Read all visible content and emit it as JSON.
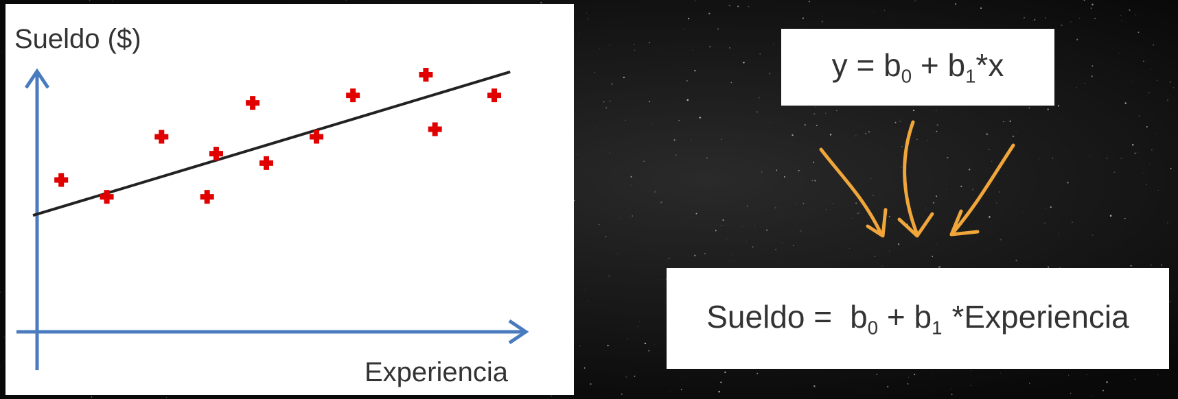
{
  "chart_data": {
    "type": "scatter",
    "ylabel": "Sueldo ($)",
    "xlabel": "Experiencia",
    "xlim": [
      0,
      10
    ],
    "ylim": [
      0,
      10
    ],
    "grid": false,
    "points": [
      {
        "x": 0.5,
        "y": 4.8
      },
      {
        "x": 1.5,
        "y": 3.9
      },
      {
        "x": 2.7,
        "y": 7.1
      },
      {
        "x": 3.7,
        "y": 3.9
      },
      {
        "x": 3.9,
        "y": 6.2
      },
      {
        "x": 4.7,
        "y": 8.9
      },
      {
        "x": 5.0,
        "y": 5.7
      },
      {
        "x": 6.1,
        "y": 7.1
      },
      {
        "x": 6.9,
        "y": 9.3
      },
      {
        "x": 8.5,
        "y": 10.4
      },
      {
        "x": 8.7,
        "y": 7.5
      },
      {
        "x": 10.0,
        "y": 9.3
      }
    ],
    "regression_line": {
      "intercept": 3.0,
      "slope": 0.73
    },
    "colors": {
      "axis": "#4a7bbf",
      "points": "#e00000",
      "line": "#222222"
    }
  },
  "equations": {
    "general": {
      "prefix": "y = b",
      "sub0": "0",
      "mid": " + b",
      "sub1": "1",
      "suffix": "*x"
    },
    "specific": {
      "prefix": "Sueldo =",
      "b0": "b",
      "sub0": "0",
      "mid": " + b",
      "sub1": "1",
      "suffix": "*Experiencia"
    }
  },
  "decor": {
    "arrow_color": "#f0a63a",
    "arrow_icon": "hand-drawn-arrows-icon"
  }
}
